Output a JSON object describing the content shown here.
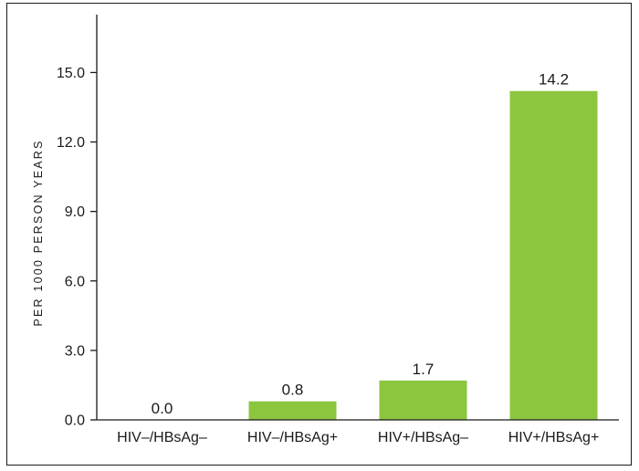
{
  "colors": {
    "bar": "#8cc63f",
    "axis": "#1a1a1a",
    "background": "#ffffff"
  },
  "chart_data": {
    "type": "bar",
    "title": "",
    "xlabel": "",
    "ylabel": "PER 1000 PERSON YEARS",
    "categories": [
      "HIV–/HBsAg–",
      "HIV–/HBsAg+",
      "HIV+/HBsAg–",
      "HIV+/HBsAg+"
    ],
    "values": [
      0.0,
      0.8,
      1.7,
      14.2
    ],
    "value_labels": [
      "0.0",
      "0.8",
      "1.7",
      "14.2"
    ],
    "ylim": [
      0,
      17.5
    ],
    "yticks": [
      0.0,
      3.0,
      6.0,
      9.0,
      12.0,
      15.0
    ],
    "ytick_labels": [
      "0.0",
      "3.0",
      "6.0",
      "9.0",
      "12.0",
      "15.0"
    ],
    "grid": false,
    "legend": "none"
  }
}
